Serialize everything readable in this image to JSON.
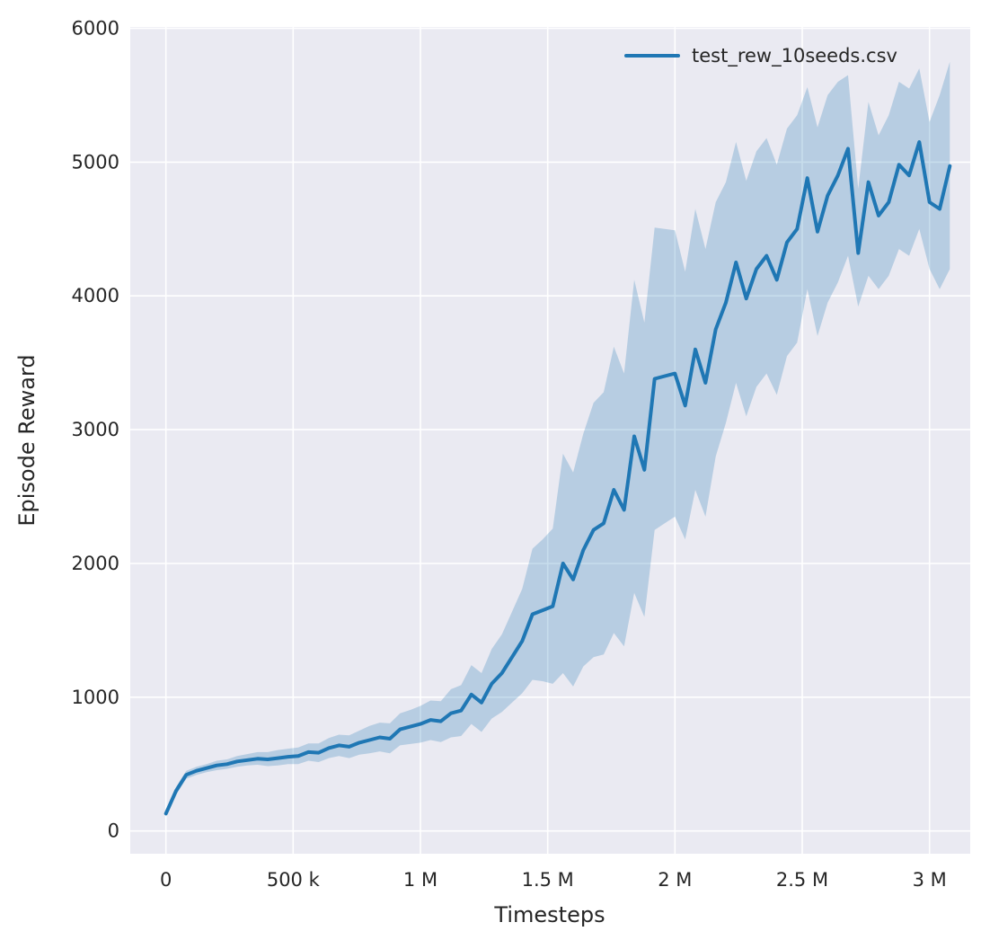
{
  "colors": {
    "line": "#1f77b4",
    "band": "#1f77b4",
    "plot_bg": "#eaeaf2",
    "grid": "#ffffff",
    "text": "#262626",
    "figure_bg": "#ffffff"
  },
  "chart_data": {
    "type": "line",
    "title": "",
    "xlabel": "Timesteps",
    "ylabel": "Episode Reward",
    "grid": true,
    "legend_position": "upper right",
    "xlim": [
      -140000,
      3160000
    ],
    "ylim": [
      -170,
      6010
    ],
    "x_ticks": [
      0,
      500000,
      1000000,
      1500000,
      2000000,
      2500000,
      3000000
    ],
    "x_tick_labels": [
      "0",
      "500 k",
      "1 M",
      "1.5 M",
      "2 M",
      "2.5 M",
      "3 M"
    ],
    "y_ticks": [
      0,
      1000,
      2000,
      3000,
      4000,
      5000,
      6000
    ],
    "y_tick_labels": [
      "0",
      "1000",
      "2000",
      "3000",
      "4000",
      "5000",
      "6000"
    ],
    "series": [
      {
        "name": "test_rew_10seeds.csv",
        "color": "#1f77b4",
        "band_alpha": 0.25,
        "line_width": 4,
        "x": [
          0,
          40000,
          80000,
          120000,
          160000,
          200000,
          240000,
          280000,
          320000,
          360000,
          400000,
          440000,
          480000,
          520000,
          560000,
          600000,
          640000,
          680000,
          720000,
          760000,
          800000,
          840000,
          880000,
          920000,
          960000,
          1000000,
          1040000,
          1080000,
          1120000,
          1160000,
          1200000,
          1240000,
          1280000,
          1320000,
          1360000,
          1400000,
          1440000,
          1480000,
          1520000,
          1560000,
          1600000,
          1640000,
          1680000,
          1720000,
          1760000,
          1800000,
          1840000,
          1880000,
          1920000,
          1960000,
          2000000,
          2040000,
          2080000,
          2120000,
          2160000,
          2200000,
          2240000,
          2280000,
          2320000,
          2360000,
          2400000,
          2440000,
          2480000,
          2520000,
          2560000,
          2600000,
          2640000,
          2680000,
          2720000,
          2760000,
          2800000,
          2840000,
          2880000,
          2920000,
          2960000,
          3000000,
          3040000,
          3080000
        ],
        "mean": [
          130,
          300,
          420,
          450,
          470,
          490,
          500,
          520,
          530,
          540,
          535,
          545,
          555,
          560,
          590,
          585,
          620,
          640,
          630,
          660,
          680,
          700,
          690,
          760,
          780,
          800,
          830,
          820,
          880,
          900,
          1020,
          960,
          1100,
          1180,
          1300,
          1420,
          1620,
          1650,
          1680,
          2000,
          1880,
          2100,
          2250,
          2300,
          2550,
          2400,
          2950,
          2700,
          3380,
          3400,
          3420,
          3180,
          3600,
          3350,
          3750,
          3950,
          4250,
          3980,
          4200,
          4300,
          4120,
          4400,
          4500,
          4880,
          4480,
          4750,
          4900,
          5100,
          4320,
          4850,
          4600,
          4700,
          4980,
          4900,
          5150,
          4700,
          4650,
          4970
        ],
        "lower": [
          110,
          270,
          390,
          420,
          440,
          455,
          465,
          480,
          490,
          495,
          485,
          490,
          500,
          500,
          525,
          515,
          545,
          560,
          545,
          570,
          580,
          595,
          580,
          640,
          650,
          660,
          680,
          665,
          700,
          710,
          800,
          740,
          840,
          890,
          960,
          1030,
          1130,
          1120,
          1100,
          1180,
          1080,
          1230,
          1300,
          1320,
          1480,
          1380,
          1780,
          1600,
          2250,
          2300,
          2350,
          2180,
          2550,
          2350,
          2800,
          3050,
          3350,
          3100,
          3320,
          3420,
          3260,
          3550,
          3650,
          4050,
          3700,
          3950,
          4100,
          4300,
          3920,
          4150,
          4050,
          4150,
          4350,
          4300,
          4500,
          4200,
          4050,
          4200
        ],
        "upper": [
          155,
          330,
          450,
          480,
          500,
          525,
          535,
          560,
          575,
          590,
          590,
          605,
          615,
          625,
          655,
          655,
          695,
          720,
          715,
          750,
          785,
          810,
          805,
          880,
          905,
          935,
          975,
          970,
          1060,
          1090,
          1240,
          1180,
          1360,
          1470,
          1640,
          1810,
          2110,
          2180,
          2260,
          2820,
          2680,
          2970,
          3200,
          3280,
          3620,
          3420,
          4120,
          3800,
          4510,
          4500,
          4490,
          4180,
          4650,
          4350,
          4700,
          4850,
          5150,
          4860,
          5080,
          5180,
          4980,
          5250,
          5350,
          5560,
          5260,
          5500,
          5600,
          5650,
          4800,
          5450,
          5200,
          5350,
          5600,
          5550,
          5700,
          5300,
          5500,
          5750
        ]
      }
    ]
  }
}
